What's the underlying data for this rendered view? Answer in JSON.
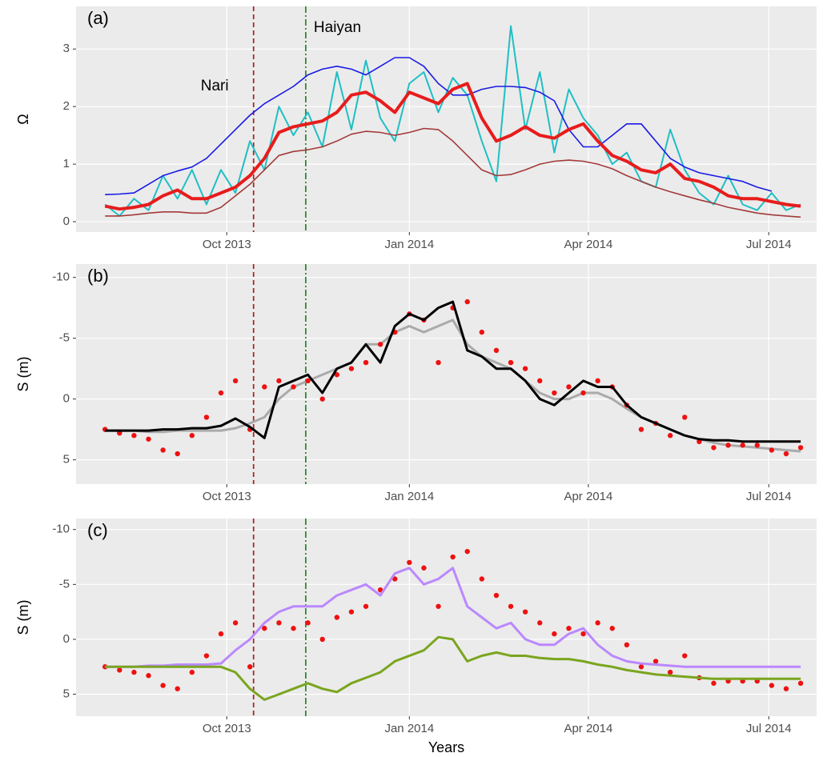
{
  "chart_data": [
    {
      "type": "line",
      "label": "(a)",
      "ylabel": "Ω",
      "xlim": [
        2013.54,
        2014.562
      ],
      "ylim": [
        -0.18,
        3.74
      ],
      "yticks": [
        0,
        1,
        2,
        3
      ],
      "xticks": [
        {
          "value": 2013.748,
          "label": "Oct 2013"
        },
        {
          "value": 2014.0,
          "label": "Jan 2014"
        },
        {
          "value": 2014.247,
          "label": "Apr 2014"
        },
        {
          "value": 2014.496,
          "label": "Jul 2014"
        }
      ],
      "grid": true,
      "events": [
        {
          "label": "Nari",
          "x": 2013.785,
          "color": "#a52a2a",
          "dash": "dashed"
        },
        {
          "label": "Haiyan",
          "x": 2013.857,
          "color": "#2e8b2e",
          "dash": "dotdash"
        }
      ],
      "x": [
        2013.58,
        2013.6,
        2013.62,
        2013.64,
        2013.66,
        2013.68,
        2013.7,
        2013.72,
        2013.74,
        2013.76,
        2013.78,
        2013.8,
        2013.82,
        2013.84,
        2013.86,
        2013.88,
        2013.9,
        2013.92,
        2013.94,
        2013.96,
        2013.98,
        2014.0,
        2014.02,
        2014.04,
        2014.06,
        2014.08,
        2014.1,
        2014.12,
        2014.14,
        2014.16,
        2014.18,
        2014.2,
        2014.22,
        2014.24,
        2014.26,
        2014.28,
        2014.3,
        2014.32,
        2014.34,
        2014.36,
        2014.38,
        2014.4,
        2014.42,
        2014.44,
        2014.46,
        2014.48,
        2014.5,
        2014.52,
        2014.54
      ],
      "series": [
        {
          "mark": "line",
          "width": 2,
          "color": "#1fbfc4",
          "values": [
            0.3,
            0.1,
            0.4,
            0.2,
            0.8,
            0.4,
            0.9,
            0.3,
            0.9,
            0.5,
            1.4,
            0.9,
            2.0,
            1.5,
            1.9,
            1.3,
            2.6,
            1.6,
            2.8,
            1.8,
            1.4,
            2.4,
            2.6,
            1.9,
            2.5,
            2.2,
            1.4,
            0.7,
            3.4,
            1.6,
            2.6,
            1.2,
            2.3,
            1.8,
            1.5,
            1.0,
            1.2,
            0.7,
            0.6,
            1.6,
            0.9,
            0.5,
            0.3,
            0.8,
            0.3,
            0.2,
            0.5,
            0.2,
            0.3
          ]
        },
        {
          "mark": "line",
          "width": 1.6,
          "color": "#1a1ae6",
          "values": [
            0.47,
            0.48,
            0.5,
            0.65,
            0.8,
            0.88,
            0.95,
            1.1,
            1.35,
            1.6,
            1.85,
            2.05,
            2.2,
            2.35,
            2.55,
            2.65,
            2.7,
            2.65,
            2.55,
            2.7,
            2.85,
            2.85,
            2.7,
            2.4,
            2.2,
            2.2,
            2.3,
            2.35,
            2.35,
            2.33,
            2.25,
            2.1,
            1.6,
            1.3,
            1.3,
            1.5,
            1.7,
            1.7,
            1.4,
            1.1,
            0.95,
            0.85,
            0.8,
            0.75,
            0.7,
            0.6,
            0.53,
            null,
            null
          ]
        },
        {
          "mark": "line",
          "width": 1.6,
          "color": "#a33a3a",
          "values": [
            0.1,
            0.1,
            0.12,
            0.15,
            0.17,
            0.17,
            0.15,
            0.15,
            0.25,
            0.45,
            0.65,
            0.9,
            1.15,
            1.22,
            1.25,
            1.3,
            1.4,
            1.52,
            1.57,
            1.55,
            1.5,
            1.55,
            1.62,
            1.6,
            1.4,
            1.15,
            0.9,
            0.8,
            0.82,
            0.9,
            1.0,
            1.05,
            1.07,
            1.05,
            1.0,
            0.92,
            0.8,
            0.7,
            0.6,
            0.52,
            0.45,
            0.38,
            0.32,
            0.25,
            0.2,
            0.15,
            0.12,
            0.1,
            0.08
          ]
        },
        {
          "mark": "line",
          "width": 4,
          "color": "#e81c1c",
          "values": [
            0.27,
            0.22,
            0.25,
            0.3,
            0.45,
            0.55,
            0.4,
            0.4,
            0.5,
            0.6,
            0.8,
            1.1,
            1.55,
            1.65,
            1.7,
            1.75,
            1.9,
            2.2,
            2.25,
            2.1,
            1.9,
            2.25,
            2.15,
            2.05,
            2.3,
            2.4,
            1.8,
            1.4,
            1.5,
            1.65,
            1.5,
            1.45,
            1.6,
            1.7,
            1.4,
            1.15,
            1.05,
            0.9,
            0.85,
            1.0,
            0.75,
            0.7,
            0.6,
            0.45,
            0.4,
            0.4,
            0.35,
            0.3,
            0.27
          ]
        }
      ]
    },
    {
      "type": "line",
      "label": "(b)",
      "ylabel": "S (m)",
      "xlim": [
        2013.54,
        2014.562
      ],
      "ylim": [
        7.0,
        -11.1
      ],
      "yticks": [
        -10,
        -5,
        0,
        5
      ],
      "xticks": [
        {
          "value": 2013.748,
          "label": "Oct 2013"
        },
        {
          "value": 2014.0,
          "label": "Jan 2014"
        },
        {
          "value": 2014.247,
          "label": "Apr 2014"
        },
        {
          "value": 2014.496,
          "label": "Jul 2014"
        }
      ],
      "grid": true,
      "events": [
        {
          "x": 2013.785,
          "color": "#a52a2a",
          "dash": "dashed"
        },
        {
          "x": 2013.857,
          "color": "#2e8b2e",
          "dash": "dotdash"
        }
      ],
      "x": [
        2013.58,
        2013.6,
        2013.62,
        2013.64,
        2013.66,
        2013.68,
        2013.7,
        2013.72,
        2013.74,
        2013.76,
        2013.78,
        2013.8,
        2013.82,
        2013.84,
        2013.86,
        2013.88,
        2013.9,
        2013.92,
        2013.94,
        2013.96,
        2013.98,
        2014.0,
        2014.02,
        2014.04,
        2014.06,
        2014.08,
        2014.1,
        2014.12,
        2014.14,
        2014.16,
        2014.18,
        2014.2,
        2014.22,
        2014.24,
        2014.26,
        2014.28,
        2014.3,
        2014.32,
        2014.34,
        2014.36,
        2014.38,
        2014.4,
        2014.42,
        2014.44,
        2014.46,
        2014.48,
        2014.5,
        2014.52,
        2014.54
      ],
      "series": [
        {
          "mark": "line",
          "width": 3,
          "color": "#aaaaaa",
          "values": [
            2.6,
            2.6,
            2.6,
            2.7,
            2.7,
            2.6,
            2.6,
            2.6,
            2.6,
            2.4,
            2.0,
            1.5,
            0.0,
            -1.0,
            -1.5,
            -2.0,
            -2.5,
            -3.0,
            -4.5,
            -4.5,
            -5.5,
            -6.0,
            -5.5,
            -6.0,
            -6.5,
            -4.5,
            -3.5,
            -3.0,
            -2.5,
            -1.5,
            -0.5,
            0.0,
            0.0,
            -0.5,
            -0.5,
            0.0,
            0.8,
            1.5,
            2.0,
            2.5,
            3.0,
            3.3,
            3.6,
            3.8,
            3.9,
            4.0,
            4.1,
            4.2,
            4.3
          ]
        },
        {
          "mark": "point",
          "color": "#ee1111",
          "values": [
            2.5,
            2.8,
            3.0,
            3.3,
            4.2,
            4.5,
            3.0,
            1.5,
            -0.5,
            -1.5,
            2.5,
            -1.0,
            -1.5,
            -1.0,
            -1.5,
            0.0,
            -2.0,
            -2.5,
            -3.0,
            -4.5,
            -5.5,
            -7.0,
            -6.5,
            -3.0,
            -7.5,
            -8.0,
            -5.5,
            -4.0,
            -3.0,
            -2.5,
            -1.5,
            -0.5,
            -1.0,
            -0.5,
            -1.5,
            -1.0,
            0.5,
            2.5,
            2.0,
            3.0,
            1.5,
            3.5,
            4.0,
            3.8,
            3.8,
            3.8,
            4.2,
            4.5,
            4.0
          ]
        },
        {
          "mark": "line",
          "width": 3,
          "color": "#000000",
          "values": [
            2.6,
            2.6,
            2.6,
            2.6,
            2.5,
            2.5,
            2.4,
            2.4,
            2.2,
            1.6,
            2.3,
            3.2,
            -1.0,
            -1.5,
            -2.0,
            -0.5,
            -2.5,
            -3.0,
            -4.5,
            -3.0,
            -6.0,
            -7.0,
            -6.5,
            -7.5,
            -8.0,
            -4.0,
            -3.5,
            -2.5,
            -2.5,
            -1.5,
            0.0,
            0.5,
            -0.5,
            -1.5,
            -1.0,
            -1.0,
            0.5,
            1.5,
            2.0,
            2.5,
            3.0,
            3.3,
            3.4,
            3.4,
            3.5,
            3.5,
            3.5,
            3.5,
            3.5
          ]
        }
      ]
    },
    {
      "type": "line",
      "label": "(c)",
      "ylabel": "S (m)",
      "xlabel": "Years",
      "xlim": [
        2013.54,
        2014.562
      ],
      "ylim": [
        7.0,
        -11.0
      ],
      "yticks": [
        -10,
        -5,
        0,
        5
      ],
      "xticks": [
        {
          "value": 2013.748,
          "label": "Oct 2013"
        },
        {
          "value": 2014.0,
          "label": "Jan 2014"
        },
        {
          "value": 2014.247,
          "label": "Apr 2014"
        },
        {
          "value": 2014.496,
          "label": "Jul 2014"
        }
      ],
      "grid": true,
      "events": [
        {
          "x": 2013.785,
          "color": "#a52a2a",
          "dash": "dashed"
        },
        {
          "x": 2013.857,
          "color": "#2e8b2e",
          "dash": "dotdash"
        }
      ],
      "x": [
        2013.58,
        2013.6,
        2013.62,
        2013.64,
        2013.66,
        2013.68,
        2013.7,
        2013.72,
        2013.74,
        2013.76,
        2013.78,
        2013.8,
        2013.82,
        2013.84,
        2013.86,
        2013.88,
        2013.9,
        2013.92,
        2013.94,
        2013.96,
        2013.98,
        2014.0,
        2014.02,
        2014.04,
        2014.06,
        2014.08,
        2014.1,
        2014.12,
        2014.14,
        2014.16,
        2014.18,
        2014.2,
        2014.22,
        2014.24,
        2014.26,
        2014.28,
        2014.3,
        2014.32,
        2014.34,
        2014.36,
        2014.38,
        2014.4,
        2014.42,
        2014.44,
        2014.46,
        2014.48,
        2014.5,
        2014.52,
        2014.54
      ],
      "series": [
        {
          "mark": "point",
          "color": "#ee1111",
          "values": [
            2.5,
            2.8,
            3.0,
            3.3,
            4.2,
            4.5,
            3.0,
            1.5,
            -0.5,
            -1.5,
            2.5,
            -1.0,
            -1.5,
            -1.0,
            -1.5,
            0.0,
            -2.0,
            -2.5,
            -3.0,
            -4.5,
            -5.5,
            -7.0,
            -6.5,
            -3.0,
            -7.5,
            -8.0,
            -5.5,
            -4.0,
            -3.0,
            -2.5,
            -1.5,
            -0.5,
            -1.0,
            -0.5,
            -1.5,
            -1.0,
            0.5,
            2.5,
            2.0,
            3.0,
            1.5,
            3.5,
            4.0,
            3.8,
            3.8,
            3.8,
            4.2,
            4.5,
            4.0
          ]
        },
        {
          "mark": "line",
          "width": 3,
          "color": "#bb88ff",
          "values": [
            2.5,
            2.5,
            2.5,
            2.4,
            2.4,
            2.3,
            2.3,
            2.3,
            2.2,
            1.0,
            0.0,
            -1.5,
            -2.5,
            -3.0,
            -3.0,
            -3.0,
            -4.0,
            -4.5,
            -5.0,
            -4.0,
            -6.0,
            -6.5,
            -5.0,
            -5.5,
            -6.5,
            -3.0,
            -2.0,
            -1.0,
            -1.5,
            0.0,
            0.5,
            0.5,
            -0.5,
            -1.0,
            0.5,
            1.5,
            2.0,
            2.2,
            2.3,
            2.4,
            2.5,
            2.5,
            2.5,
            2.5,
            2.5,
            2.5,
            2.5,
            2.5,
            2.5
          ]
        },
        {
          "mark": "line",
          "width": 3,
          "color": "#7aa51f",
          "values": [
            2.5,
            2.5,
            2.5,
            2.5,
            2.5,
            2.5,
            2.5,
            2.5,
            2.5,
            3.0,
            4.5,
            5.5,
            5.0,
            4.5,
            4.0,
            4.5,
            4.8,
            4.0,
            3.5,
            3.0,
            2.0,
            1.5,
            1.0,
            -0.2,
            0.0,
            2.0,
            1.5,
            1.2,
            1.5,
            1.5,
            1.7,
            1.8,
            1.8,
            2.0,
            2.3,
            2.5,
            2.8,
            3.0,
            3.2,
            3.3,
            3.4,
            3.5,
            3.6,
            3.6,
            3.6,
            3.6,
            3.6,
            3.6,
            3.6
          ]
        }
      ]
    }
  ]
}
